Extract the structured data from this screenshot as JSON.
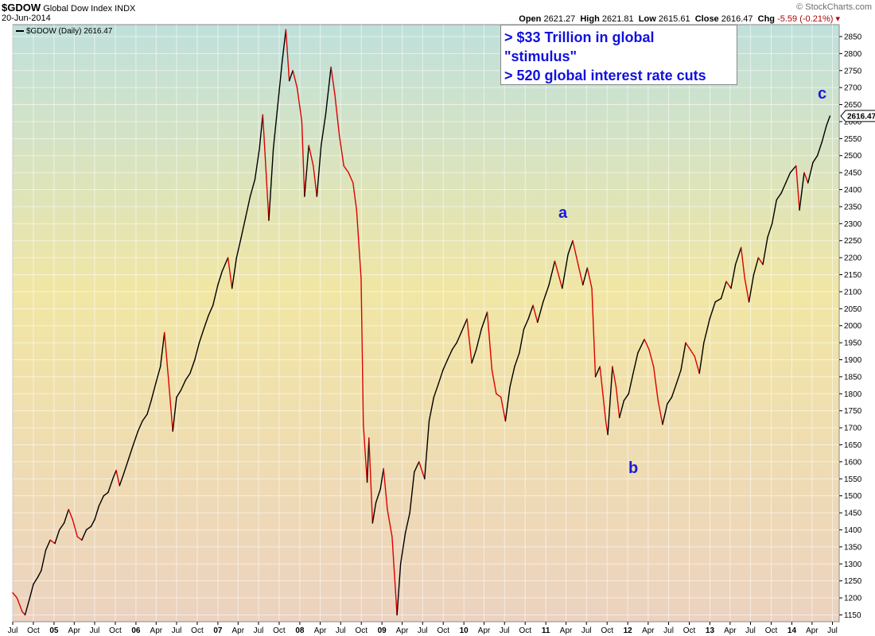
{
  "header": {
    "symbol": "$GDOW",
    "name": "Global Dow Index",
    "exchange": "INDX",
    "date": "20-Jun-2014",
    "open_label": "Open",
    "open": "2621.27",
    "high_label": "High",
    "high": "2621.81",
    "low_label": "Low",
    "low": "2615.61",
    "close_label": "Close",
    "close": "2616.47",
    "chg_label": "Chg",
    "chg": "-5.59 (-0.21%)",
    "brand": "© StockCharts.com"
  },
  "legend": {
    "text": "$GDOW (Daily) 2616.47"
  },
  "annotations": {
    "line1": "> $33 Trillion in global",
    "line2": "\"stimulus\"",
    "line3": "> 520 global interest rate cuts",
    "wave_a": "a",
    "wave_b": "b",
    "wave_c": "c"
  },
  "chart_data": {
    "type": "line",
    "title": "$GDOW Global Dow Index INDX",
    "series": [
      {
        "name": "$GDOW (Daily)",
        "points": [
          [
            "2004-07-01",
            1215
          ],
          [
            "2004-07-20",
            1200
          ],
          [
            "2004-08-12",
            1160
          ],
          [
            "2004-08-25",
            1150
          ],
          [
            "2004-09-15",
            1200
          ],
          [
            "2004-10-01",
            1240
          ],
          [
            "2004-10-20",
            1260
          ],
          [
            "2004-11-05",
            1280
          ],
          [
            "2004-11-25",
            1340
          ],
          [
            "2004-12-15",
            1370
          ],
          [
            "2005-01-05",
            1360
          ],
          [
            "2005-01-25",
            1400
          ],
          [
            "2005-02-15",
            1420
          ],
          [
            "2005-03-07",
            1460
          ],
          [
            "2005-03-25",
            1430
          ],
          [
            "2005-04-15",
            1380
          ],
          [
            "2005-05-05",
            1370
          ],
          [
            "2005-05-25",
            1400
          ],
          [
            "2005-06-15",
            1410
          ],
          [
            "2005-07-01",
            1430
          ],
          [
            "2005-07-20",
            1470
          ],
          [
            "2005-08-10",
            1500
          ],
          [
            "2005-08-30",
            1510
          ],
          [
            "2005-09-20",
            1550
          ],
          [
            "2005-10-05",
            1575
          ],
          [
            "2005-10-20",
            1530
          ],
          [
            "2005-11-10",
            1570
          ],
          [
            "2005-11-30",
            1610
          ],
          [
            "2005-12-20",
            1650
          ],
          [
            "2006-01-10",
            1690
          ],
          [
            "2006-01-30",
            1720
          ],
          [
            "2006-02-20",
            1740
          ],
          [
            "2006-03-10",
            1780
          ],
          [
            "2006-03-30",
            1830
          ],
          [
            "2006-04-20",
            1880
          ],
          [
            "2006-05-08",
            1980
          ],
          [
            "2006-05-25",
            1850
          ],
          [
            "2006-06-14",
            1690
          ],
          [
            "2006-07-01",
            1790
          ],
          [
            "2006-07-20",
            1810
          ],
          [
            "2006-08-10",
            1840
          ],
          [
            "2006-08-30",
            1860
          ],
          [
            "2006-09-20",
            1900
          ],
          [
            "2006-10-10",
            1950
          ],
          [
            "2006-10-30",
            1990
          ],
          [
            "2006-11-20",
            2030
          ],
          [
            "2006-12-10",
            2060
          ],
          [
            "2007-01-01",
            2120
          ],
          [
            "2007-01-20",
            2160
          ],
          [
            "2007-02-15",
            2200
          ],
          [
            "2007-03-05",
            2110
          ],
          [
            "2007-03-25",
            2200
          ],
          [
            "2007-04-15",
            2260
          ],
          [
            "2007-05-05",
            2320
          ],
          [
            "2007-05-25",
            2380
          ],
          [
            "2007-06-15",
            2430
          ],
          [
            "2007-07-05",
            2520
          ],
          [
            "2007-07-20",
            2620
          ],
          [
            "2007-08-16",
            2310
          ],
          [
            "2007-09-05",
            2520
          ],
          [
            "2007-09-25",
            2650
          ],
          [
            "2007-10-15",
            2780
          ],
          [
            "2007-10-31",
            2870
          ],
          [
            "2007-11-15",
            2720
          ],
          [
            "2007-12-01",
            2750
          ],
          [
            "2007-12-20",
            2700
          ],
          [
            "2008-01-10",
            2600
          ],
          [
            "2008-01-22",
            2380
          ],
          [
            "2008-02-10",
            2530
          ],
          [
            "2008-03-01",
            2470
          ],
          [
            "2008-03-17",
            2380
          ],
          [
            "2008-04-05",
            2530
          ],
          [
            "2008-04-25",
            2620
          ],
          [
            "2008-05-19",
            2760
          ],
          [
            "2008-06-05",
            2680
          ],
          [
            "2008-06-25",
            2560
          ],
          [
            "2008-07-15",
            2470
          ],
          [
            "2008-08-05",
            2450
          ],
          [
            "2008-08-25",
            2420
          ],
          [
            "2008-09-10",
            2340
          ],
          [
            "2008-09-30",
            2140
          ],
          [
            "2008-10-10",
            1710
          ],
          [
            "2008-10-27",
            1540
          ],
          [
            "2008-11-04",
            1670
          ],
          [
            "2008-11-20",
            1420
          ],
          [
            "2008-12-05",
            1480
          ],
          [
            "2008-12-25",
            1520
          ],
          [
            "2009-01-08",
            1580
          ],
          [
            "2009-01-25",
            1460
          ],
          [
            "2009-02-15",
            1380
          ],
          [
            "2009-03-09",
            1150
          ],
          [
            "2009-03-25",
            1300
          ],
          [
            "2009-04-15",
            1390
          ],
          [
            "2009-05-05",
            1450
          ],
          [
            "2009-05-25",
            1570
          ],
          [
            "2009-06-15",
            1600
          ],
          [
            "2009-07-10",
            1550
          ],
          [
            "2009-07-30",
            1720
          ],
          [
            "2009-08-20",
            1790
          ],
          [
            "2009-09-10",
            1830
          ],
          [
            "2009-09-30",
            1870
          ],
          [
            "2009-10-20",
            1900
          ],
          [
            "2009-11-10",
            1930
          ],
          [
            "2009-11-30",
            1950
          ],
          [
            "2009-12-20",
            1980
          ],
          [
            "2010-01-15",
            2020
          ],
          [
            "2010-02-05",
            1890
          ],
          [
            "2010-02-25",
            1930
          ],
          [
            "2010-03-20",
            1990
          ],
          [
            "2010-04-15",
            2040
          ],
          [
            "2010-05-06",
            1870
          ],
          [
            "2010-05-25",
            1800
          ],
          [
            "2010-06-15",
            1790
          ],
          [
            "2010-07-05",
            1720
          ],
          [
            "2010-07-25",
            1820
          ],
          [
            "2010-08-15",
            1880
          ],
          [
            "2010-09-05",
            1920
          ],
          [
            "2010-09-25",
            1990
          ],
          [
            "2010-10-15",
            2020
          ],
          [
            "2010-11-05",
            2060
          ],
          [
            "2010-11-25",
            2010
          ],
          [
            "2010-12-20",
            2070
          ],
          [
            "2011-01-15",
            2120
          ],
          [
            "2011-02-10",
            2190
          ],
          [
            "2011-03-15",
            2110
          ],
          [
            "2011-04-10",
            2210
          ],
          [
            "2011-05-01",
            2250
          ],
          [
            "2011-05-25",
            2180
          ],
          [
            "2011-06-15",
            2120
          ],
          [
            "2011-07-05",
            2170
          ],
          [
            "2011-07-25",
            2110
          ],
          [
            "2011-08-10",
            1850
          ],
          [
            "2011-08-30",
            1880
          ],
          [
            "2011-09-25",
            1720
          ],
          [
            "2011-10-04",
            1680
          ],
          [
            "2011-10-25",
            1880
          ],
          [
            "2011-11-10",
            1820
          ],
          [
            "2011-11-25",
            1730
          ],
          [
            "2011-12-15",
            1780
          ],
          [
            "2012-01-05",
            1800
          ],
          [
            "2012-01-25",
            1860
          ],
          [
            "2012-02-15",
            1920
          ],
          [
            "2012-03-15",
            1960
          ],
          [
            "2012-04-05",
            1930
          ],
          [
            "2012-04-25",
            1880
          ],
          [
            "2012-05-15",
            1780
          ],
          [
            "2012-06-04",
            1710
          ],
          [
            "2012-06-25",
            1770
          ],
          [
            "2012-07-15",
            1790
          ],
          [
            "2012-08-05",
            1830
          ],
          [
            "2012-08-25",
            1870
          ],
          [
            "2012-09-15",
            1950
          ],
          [
            "2012-10-05",
            1930
          ],
          [
            "2012-10-25",
            1910
          ],
          [
            "2012-11-15",
            1860
          ],
          [
            "2012-12-05",
            1950
          ],
          [
            "2012-12-31",
            2020
          ],
          [
            "2013-01-25",
            2070
          ],
          [
            "2013-02-20",
            2080
          ],
          [
            "2013-03-15",
            2130
          ],
          [
            "2013-04-05",
            2110
          ],
          [
            "2013-04-25",
            2180
          ],
          [
            "2013-05-20",
            2230
          ],
          [
            "2013-06-05",
            2140
          ],
          [
            "2013-06-24",
            2070
          ],
          [
            "2013-07-15",
            2150
          ],
          [
            "2013-08-05",
            2200
          ],
          [
            "2013-08-25",
            2180
          ],
          [
            "2013-09-15",
            2260
          ],
          [
            "2013-10-05",
            2300
          ],
          [
            "2013-10-25",
            2370
          ],
          [
            "2013-11-15",
            2390
          ],
          [
            "2013-12-05",
            2420
          ],
          [
            "2013-12-25",
            2450
          ],
          [
            "2014-01-20",
            2470
          ],
          [
            "2014-02-04",
            2340
          ],
          [
            "2014-02-25",
            2450
          ],
          [
            "2014-03-14",
            2420
          ],
          [
            "2014-04-05",
            2480
          ],
          [
            "2014-04-25",
            2500
          ],
          [
            "2014-05-15",
            2540
          ],
          [
            "2014-06-05",
            2590
          ],
          [
            "2014-06-20",
            2616.47
          ]
        ]
      }
    ],
    "x_range": [
      "2004-07-01",
      "2014-07-31"
    ],
    "ylim": [
      1130,
      2885
    ],
    "y_ticks": [
      1150,
      1200,
      1250,
      1300,
      1350,
      1400,
      1450,
      1500,
      1550,
      1600,
      1650,
      1700,
      1750,
      1800,
      1850,
      1900,
      1950,
      2000,
      2050,
      2100,
      2150,
      2200,
      2250,
      2300,
      2350,
      2400,
      2450,
      2500,
      2550,
      2600,
      2650,
      2700,
      2750,
      2800,
      2850
    ],
    "x_ticks": [
      {
        "label": "Jul",
        "date": "2004-07-01",
        "bold": false
      },
      {
        "label": "Oct",
        "date": "2004-10-01",
        "bold": false
      },
      {
        "label": "05",
        "date": "2005-01-01",
        "bold": true
      },
      {
        "label": "Apr",
        "date": "2005-04-01",
        "bold": false
      },
      {
        "label": "Jul",
        "date": "2005-07-01",
        "bold": false
      },
      {
        "label": "Oct",
        "date": "2005-10-01",
        "bold": false
      },
      {
        "label": "06",
        "date": "2006-01-01",
        "bold": true
      },
      {
        "label": "Apr",
        "date": "2006-04-01",
        "bold": false
      },
      {
        "label": "Jul",
        "date": "2006-07-01",
        "bold": false
      },
      {
        "label": "Oct",
        "date": "2006-10-01",
        "bold": false
      },
      {
        "label": "07",
        "date": "2007-01-01",
        "bold": true
      },
      {
        "label": "Apr",
        "date": "2007-04-01",
        "bold": false
      },
      {
        "label": "Jul",
        "date": "2007-07-01",
        "bold": false
      },
      {
        "label": "Oct",
        "date": "2007-10-01",
        "bold": false
      },
      {
        "label": "08",
        "date": "2008-01-01",
        "bold": true
      },
      {
        "label": "Apr",
        "date": "2008-04-01",
        "bold": false
      },
      {
        "label": "Jul",
        "date": "2008-07-01",
        "bold": false
      },
      {
        "label": "Oct",
        "date": "2008-10-01",
        "bold": false
      },
      {
        "label": "09",
        "date": "2009-01-01",
        "bold": true
      },
      {
        "label": "Apr",
        "date": "2009-04-01",
        "bold": false
      },
      {
        "label": "Jul",
        "date": "2009-07-01",
        "bold": false
      },
      {
        "label": "Oct",
        "date": "2009-10-01",
        "bold": false
      },
      {
        "label": "10",
        "date": "2010-01-01",
        "bold": true
      },
      {
        "label": "Apr",
        "date": "2010-04-01",
        "bold": false
      },
      {
        "label": "Jul",
        "date": "2010-07-01",
        "bold": false
      },
      {
        "label": "Oct",
        "date": "2010-10-01",
        "bold": false
      },
      {
        "label": "11",
        "date": "2011-01-01",
        "bold": true
      },
      {
        "label": "Apr",
        "date": "2011-04-01",
        "bold": false
      },
      {
        "label": "Jul",
        "date": "2011-07-01",
        "bold": false
      },
      {
        "label": "Oct",
        "date": "2011-10-01",
        "bold": false
      },
      {
        "label": "12",
        "date": "2012-01-01",
        "bold": true
      },
      {
        "label": "Apr",
        "date": "2012-04-01",
        "bold": false
      },
      {
        "label": "Jul",
        "date": "2012-07-01",
        "bold": false
      },
      {
        "label": "Oct",
        "date": "2012-10-01",
        "bold": false
      },
      {
        "label": "13",
        "date": "2013-01-01",
        "bold": true
      },
      {
        "label": "Apr",
        "date": "2013-04-01",
        "bold": false
      },
      {
        "label": "Jul",
        "date": "2013-07-01",
        "bold": false
      },
      {
        "label": "Oct",
        "date": "2013-10-01",
        "bold": false
      },
      {
        "label": "14",
        "date": "2014-01-01",
        "bold": true
      },
      {
        "label": "Apr",
        "date": "2014-04-01",
        "bold": false
      },
      {
        "label": "Jul",
        "date": "2014-07-01",
        "bold": false
      }
    ],
    "last_value_label": "2616.47",
    "grid": true,
    "legend_position": "top-left",
    "up_color": "#000000",
    "down_color": "#dd0000",
    "bg_top_color": "#bfe0dc",
    "bg_mid_color": "#f1e6a4",
    "bg_bottom_color": "#ecd2c0"
  }
}
